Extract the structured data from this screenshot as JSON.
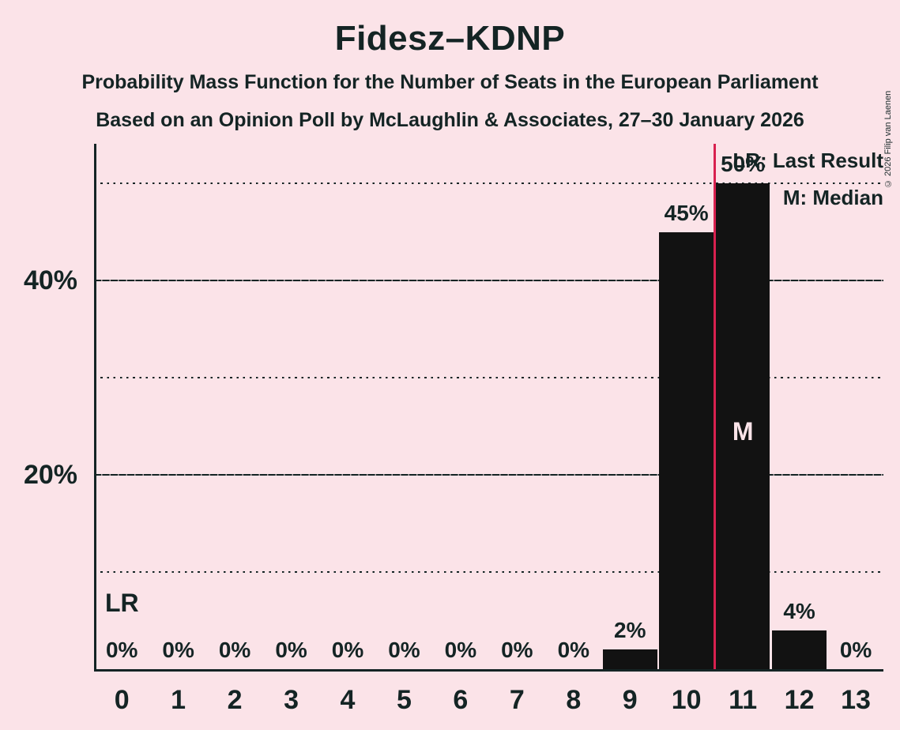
{
  "copyright": "© 2026 Filip van Laenen",
  "chart_data": {
    "type": "bar",
    "title": "Fidesz–KDNP",
    "subtitle1": "Probability Mass Function for the Number of Seats in the European Parliament",
    "subtitle2": "Based on an Opinion Poll by McLaughlin & Associates, 27–30 January 2026",
    "categories": [
      "0",
      "1",
      "2",
      "3",
      "4",
      "5",
      "6",
      "7",
      "8",
      "9",
      "10",
      "11",
      "12",
      "13"
    ],
    "values": [
      0,
      0,
      0,
      0,
      0,
      0,
      0,
      0,
      0,
      2,
      45,
      50,
      4,
      0
    ],
    "bar_labels": [
      "0%",
      "0%",
      "0%",
      "0%",
      "0%",
      "0%",
      "0%",
      "0%",
      "0%",
      "2%",
      "45%",
      "50%",
      "4%",
      "0%"
    ],
    "y_axis": {
      "ticks": [
        {
          "pct": 20,
          "label": "20%"
        },
        {
          "pct": 40,
          "label": "40%"
        }
      ],
      "gridlines": [
        {
          "pct": 10,
          "style": "dotted"
        },
        {
          "pct": 20,
          "style": "solid"
        },
        {
          "pct": 30,
          "style": "dotted"
        },
        {
          "pct": 40,
          "style": "solid"
        },
        {
          "pct": 50,
          "style": "dotted"
        }
      ],
      "ylim": [
        0,
        54
      ]
    },
    "median_seat": "11",
    "median_marker": "M",
    "last_result_position": 10.5,
    "last_result_marker": "LR",
    "legend": {
      "lr": "LR: Last Result",
      "m": "M: Median"
    },
    "colors": {
      "background": "#fbe3e8",
      "bar": "#121212",
      "text": "#142424",
      "last_result_line": "#d8214f",
      "median_text": "#fbe3e8"
    }
  }
}
